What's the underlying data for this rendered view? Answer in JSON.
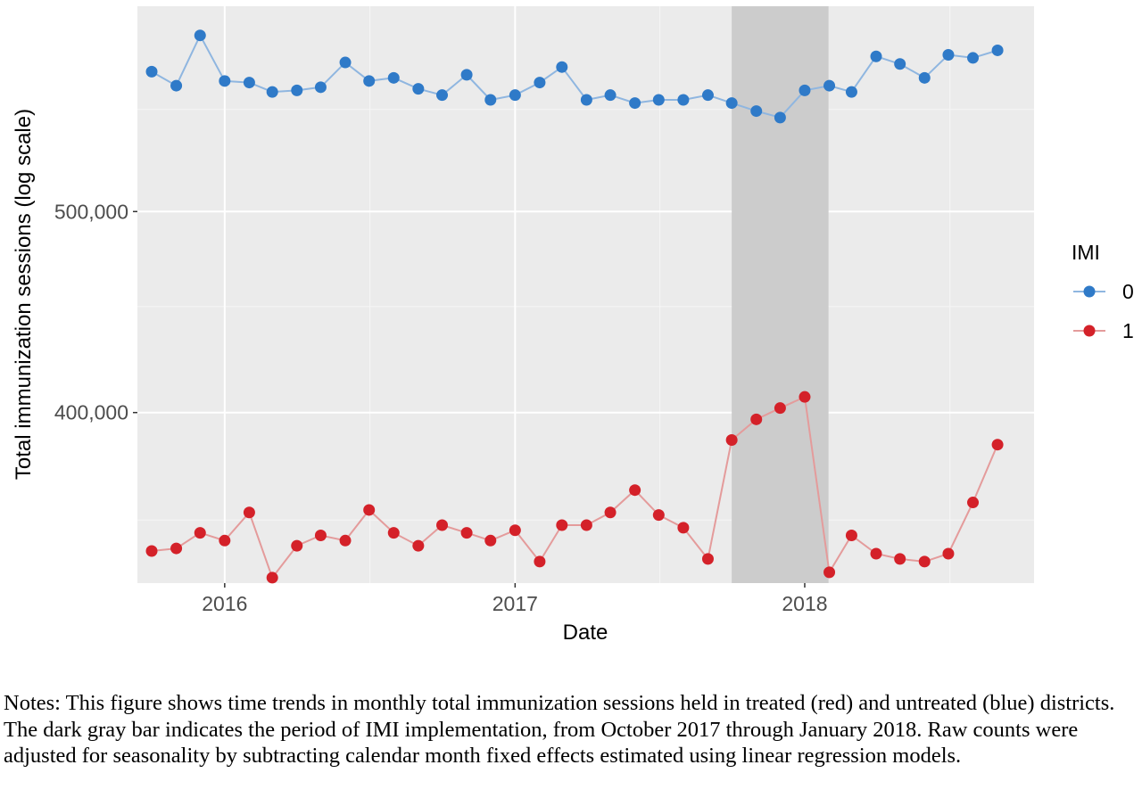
{
  "chart_data": {
    "type": "line",
    "xlabel": "Date",
    "ylabel": "Total immunization sessions (log scale)",
    "y_scale": "log",
    "ylim": [
      331000,
      628000
    ],
    "xlim": [
      "2015-09-13",
      "2018-10-17"
    ],
    "x_ticks": [
      {
        "label": "2016",
        "date": "2016-01-01"
      },
      {
        "label": "2017",
        "date": "2017-01-01"
      },
      {
        "label": "2018",
        "date": "2018-01-01"
      }
    ],
    "y_ticks": [
      {
        "label": "500,000",
        "value": 500000
      },
      {
        "label": "400,000",
        "value": 400000
      }
    ],
    "y_minor_gridlines": [
      450000,
      355000,
      560000
    ],
    "grid": true,
    "background": "#ebebeb",
    "legend": {
      "title": "IMI",
      "position": "right"
    },
    "shaded_period": {
      "start": "2017-10-01",
      "end": "2018-01-31",
      "color": "#cccccc"
    },
    "x": [
      "2015-10-01",
      "2015-11-01",
      "2015-12-01",
      "2016-01-01",
      "2016-02-01",
      "2016-03-01",
      "2016-04-01",
      "2016-05-01",
      "2016-06-01",
      "2016-07-01",
      "2016-08-01",
      "2016-09-01",
      "2016-10-01",
      "2016-11-01",
      "2016-12-01",
      "2017-01-01",
      "2017-02-01",
      "2017-03-01",
      "2017-04-01",
      "2017-05-01",
      "2017-06-01",
      "2017-07-01",
      "2017-08-01",
      "2017-09-01",
      "2017-10-01",
      "2017-11-01",
      "2017-12-01",
      "2018-01-01",
      "2018-02-01",
      "2018-03-01",
      "2018-04-01",
      "2018-05-01",
      "2018-06-01",
      "2018-07-01",
      "2018-08-01",
      "2018-09-01"
    ],
    "series": [
      {
        "name": "0",
        "color": "#2f7ac8",
        "line_color": "#8fb6e0",
        "values": [
          584000,
          575000,
          608000,
          578000,
          577000,
          571000,
          572000,
          574000,
          590000,
          578000,
          580000,
          573000,
          569000,
          582000,
          566000,
          569000,
          577000,
          587000,
          566000,
          569000,
          564000,
          566000,
          566000,
          569000,
          564000,
          559000,
          555000,
          572000,
          575000,
          571000,
          594000,
          589000,
          580000,
          595000,
          593000,
          598000
        ]
      },
      {
        "name": "1",
        "color": "#d42129",
        "line_color": "#e49b9b",
        "values": [
          343000,
          344000,
          350000,
          347000,
          358000,
          333000,
          345000,
          349000,
          347000,
          359000,
          350000,
          345000,
          353000,
          350000,
          347000,
          351000,
          339000,
          353000,
          353000,
          358000,
          367000,
          357000,
          352000,
          340000,
          388000,
          397000,
          402000,
          407000,
          335000,
          349000,
          342000,
          340000,
          339000,
          342000,
          362000,
          386000
        ]
      }
    ]
  },
  "notes_text": "Notes: This figure shows time trends in monthly total immunization sessions held in treated (red) and untreated (blue) districts. The dark gray bar indicates the period of IMI implementation, from October 2017 through January 2018. Raw counts were adjusted for seasonality by subtracting calendar month fixed effects estimated using linear regression models."
}
